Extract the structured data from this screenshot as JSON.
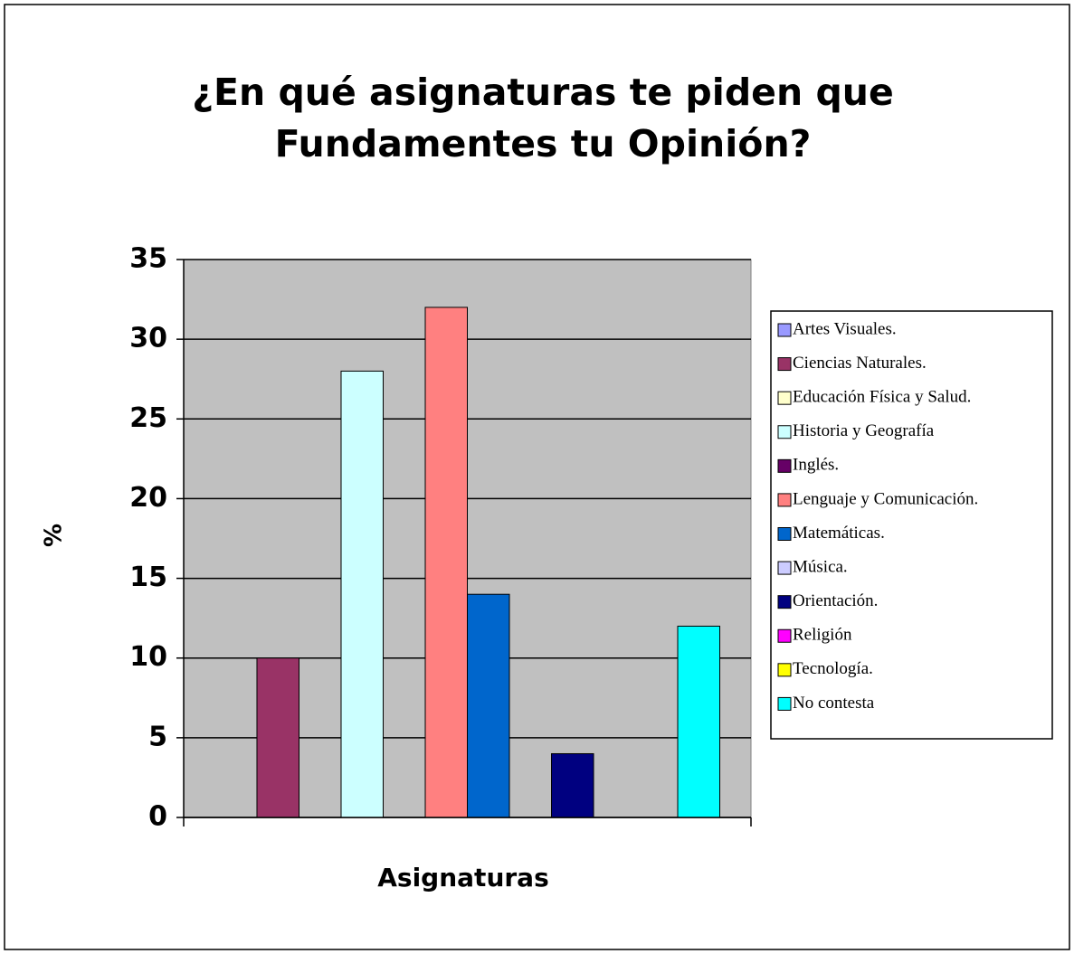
{
  "chart_data": {
    "type": "bar",
    "title": [
      "¿En qué asignaturas te piden que",
      "Fundamentes tu Opinión?"
    ],
    "x_label": "Asignaturas",
    "y_label": "%",
    "categories": [
      null
    ],
    "series": [
      {
        "name": "Artes Visuales.",
        "color": "#9999ff",
        "values": [
          0
        ]
      },
      {
        "name": "Ciencias Naturales.",
        "color": "#993366",
        "values": [
          10
        ]
      },
      {
        "name": "Educación Física y Salud.",
        "color": "#ffffcc",
        "values": [
          0
        ]
      },
      {
        "name": "Historia y Geografía",
        "color": "#ccffff",
        "values": [
          28
        ]
      },
      {
        "name": "Inglés.",
        "color": "#660066",
        "values": [
          0
        ]
      },
      {
        "name": "Lenguaje y Comunicación.",
        "color": "#ff8080",
        "values": [
          32
        ]
      },
      {
        "name": "Matemáticas.",
        "color": "#0066cc",
        "values": [
          14
        ]
      },
      {
        "name": "Música.",
        "color": "#ccccff",
        "values": [
          0
        ]
      },
      {
        "name": "Orientación.",
        "color": "#000080",
        "values": [
          4
        ]
      },
      {
        "name": "Religión",
        "color": "#ff00ff",
        "values": [
          0
        ]
      },
      {
        "name": "Tecnología.",
        "color": "#ffff00",
        "values": [
          0
        ]
      },
      {
        "name": "No contesta",
        "color": "#00ffff",
        "values": [
          12
        ]
      }
    ],
    "ylim": [
      0,
      35
    ],
    "yticks": [
      0,
      5,
      10,
      15,
      20,
      25,
      30,
      35
    ],
    "grid": true,
    "legend": "right",
    "plot_background": "#c0c0c0"
  }
}
